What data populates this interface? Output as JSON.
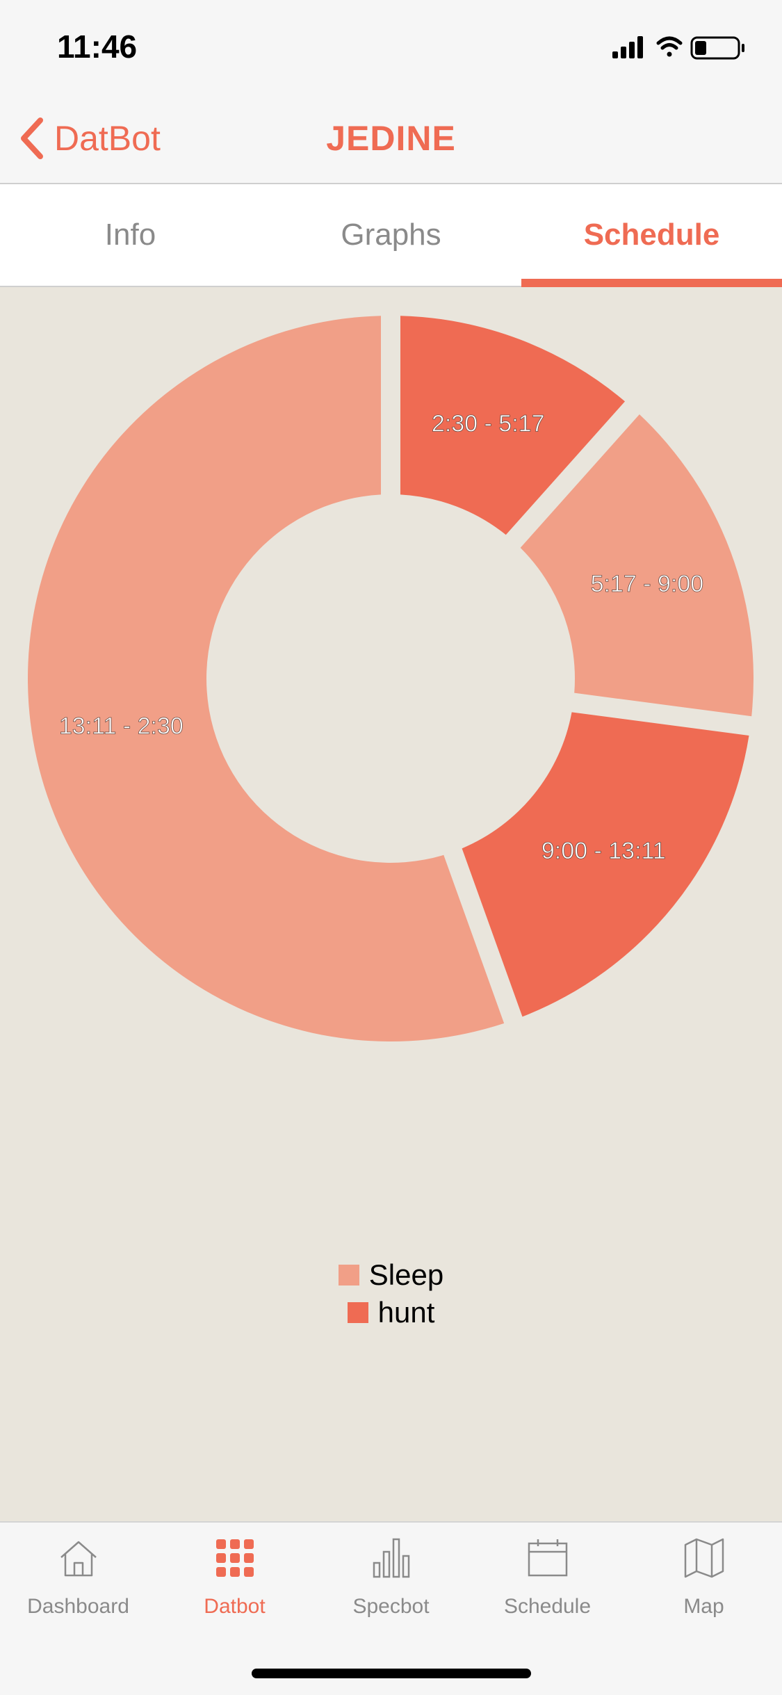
{
  "status": {
    "time": "11:46"
  },
  "nav": {
    "back_label": "DatBot",
    "title": "JEDINE"
  },
  "tabs": [
    {
      "label": "Info",
      "active": false
    },
    {
      "label": "Graphs",
      "active": false
    },
    {
      "label": "Schedule",
      "active": true
    }
  ],
  "chart_data": {
    "type": "pie",
    "slices": [
      {
        "label": "2:30 - 5:17",
        "series": "hunt"
      },
      {
        "label": "5:17 - 9:00",
        "series": "Sleep"
      },
      {
        "label": "9:00 - 13:11",
        "series": "hunt"
      },
      {
        "label": "13:11 - 2:30",
        "series": "Sleep"
      }
    ],
    "values_minutes": [
      167,
      223,
      251,
      799
    ],
    "legend": [
      {
        "name": "Sleep",
        "color": "#f19f87"
      },
      {
        "name": "hunt",
        "color": "#ef6b53"
      }
    ],
    "legend_position": "bottom"
  },
  "tabbar": [
    {
      "label": "Dashboard",
      "icon": "home-icon",
      "active": false
    },
    {
      "label": "Datbot",
      "icon": "grid-icon",
      "active": true
    },
    {
      "label": "Specbot",
      "icon": "bar-chart-icon",
      "active": false
    },
    {
      "label": "Schedule",
      "icon": "calendar-icon",
      "active": false
    },
    {
      "label": "Map",
      "icon": "map-icon",
      "active": false
    }
  ],
  "colors": {
    "accent": "#ef6b53",
    "light": "#f19f87",
    "background": "#e9e5dc"
  }
}
